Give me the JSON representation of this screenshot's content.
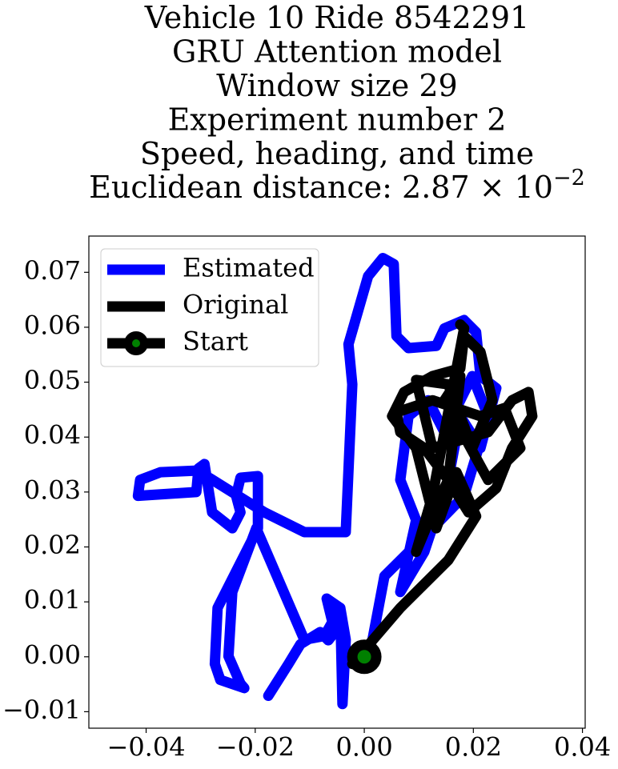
{
  "chart_data": {
    "type": "line",
    "title_lines": [
      "Vehicle 10 Ride 8542291",
      "GRU Attention model",
      "Window size 29",
      "Experiment number 2",
      "Speed, heading, and time"
    ],
    "metric_label": "Euclidean distance: 2.87 × 10",
    "metric_exponent": "−2",
    "xlim": [
      -0.0505,
      0.0405
    ],
    "ylim": [
      -0.013,
      0.0766
    ],
    "xticks": [
      {
        "value": -0.04,
        "label": "−0.04"
      },
      {
        "value": -0.02,
        "label": "−0.02"
      },
      {
        "value": 0,
        "label": "0.00"
      },
      {
        "value": 0.02,
        "label": "0.02"
      },
      {
        "value": 0.04,
        "label": "0.04"
      }
    ],
    "yticks": [
      {
        "value": -0.01,
        "label": "−0.01"
      },
      {
        "value": 0,
        "label": "0.00"
      },
      {
        "value": 0.01,
        "label": "0.01"
      },
      {
        "value": 0.02,
        "label": "0.02"
      },
      {
        "value": 0.03,
        "label": "0.03"
      },
      {
        "value": 0.04,
        "label": "0.04"
      },
      {
        "value": 0.05,
        "label": "0.05"
      },
      {
        "value": 0.06,
        "label": "0.06"
      },
      {
        "value": 0.07,
        "label": "0.07"
      }
    ],
    "legend": "upper left",
    "series": [
      {
        "name": "Estimated",
        "color": "#0000ff",
        "x": [
          -0.0176,
          -0.0139,
          -0.0117,
          -0.0081,
          -0.0066,
          -0.0054,
          -0.0069,
          -0.0044,
          -0.0034,
          -0.004,
          -0.0044,
          -0.0073,
          -0.011,
          -0.0198,
          -0.0242,
          -0.0249,
          -0.0227,
          -0.022,
          -0.0264,
          -0.0274,
          -0.0269,
          -0.0195,
          -0.0195,
          -0.0227,
          -0.0235,
          -0.0227,
          -0.0242,
          -0.0279,
          -0.0293,
          -0.0304,
          -0.0308,
          -0.0415,
          -0.0411,
          -0.0374,
          -0.0308,
          -0.0283,
          -0.0183,
          -0.011,
          -0.0034,
          -0.0022,
          -0.0029,
          0.0007,
          0.0034,
          0.0054,
          0.0059,
          0.0081,
          0.0132,
          0.0147,
          0.0183,
          0.0205,
          0.0213,
          0.0242,
          0.0213,
          0.0176,
          0.0154,
          0.011,
          0.0066,
          0.0095,
          0.0066,
          0.0081,
          0.0117,
          0.0147,
          0.0198,
          0.0227,
          0.0183,
          0.0125,
          0.0037,
          0.0015,
          0
        ],
        "y": [
          -0.0071,
          -0.0013,
          0.0023,
          0.0045,
          0.003,
          0.0045,
          0.0106,
          0.0089,
          0.0031,
          -0.0086,
          0.0089,
          0.0038,
          0.0031,
          0.0234,
          0.0118,
          0.0001,
          -0.0049,
          -0.0057,
          -0.0042,
          -0.0013,
          0.0089,
          0.0234,
          0.0329,
          0.0326,
          0.0293,
          0.0263,
          0.0234,
          0.0263,
          0.0351,
          0.0343,
          0.03,
          0.0293,
          0.0322,
          0.0336,
          0.0339,
          0.0325,
          0.0263,
          0.0227,
          0.0227,
          0.0496,
          0.0569,
          0.0693,
          0.0726,
          0.0715,
          0.0584,
          0.0562,
          0.0566,
          0.0598,
          0.0613,
          0.0591,
          0.0511,
          0.0489,
          0.038,
          0.0438,
          0.0322,
          0.0191,
          0.0118,
          0.0249,
          0.0322,
          0.0438,
          0.0467,
          0.0409,
          0.0511,
          0.0438,
          0.0293,
          0.0234,
          0.0147,
          0.0031,
          0
        ]
      },
      {
        "name": "Original",
        "color": "#000000",
        "x": [
          0,
          -0.0022,
          0.0066,
          0.0154,
          0.0205,
          0.0169,
          0.0132,
          0.0095,
          0.0051,
          0.0073,
          0.0125,
          0.0176,
          0.0183,
          0.0213,
          0.0235,
          0.0198,
          0.0154,
          0.0095,
          0.0125,
          0.0227,
          0.0271,
          0.0301,
          0.0308,
          0.0271,
          0.0242,
          0.0191,
          0.0154,
          0.011,
          0.0066,
          0.0059,
          0.0125,
          0.0213,
          0.0257,
          0.0286,
          0.0227,
          0.0183,
          0.0147,
          0.0176,
          0.0154,
          0.0125,
          0.0095,
          0.0125,
          0.0183,
          0.0176
        ],
        "y": [
          0,
          -0.0013,
          0.0089,
          0.0176,
          0.0256,
          0.0336,
          0.0234,
          0.038,
          0.0438,
          0.0482,
          0.0511,
          0.0525,
          0.0584,
          0.0555,
          0.0467,
          0.038,
          0.0496,
          0.0504,
          0.038,
          0.0409,
          0.0467,
          0.0482,
          0.0438,
          0.038,
          0.0307,
          0.0263,
          0.0322,
          0.038,
          0.0409,
          0.0445,
          0.0467,
          0.0438,
          0.0453,
          0.038,
          0.0322,
          0.0402,
          0.0467,
          0.0511,
          0.0322,
          0.0263,
          0.0191,
          0.0293,
          0.0598,
          0.0605
        ]
      },
      {
        "name": "Start",
        "color": "#000000",
        "marker_color": "#008000",
        "x": [
          0
        ],
        "y": [
          0
        ]
      }
    ]
  }
}
